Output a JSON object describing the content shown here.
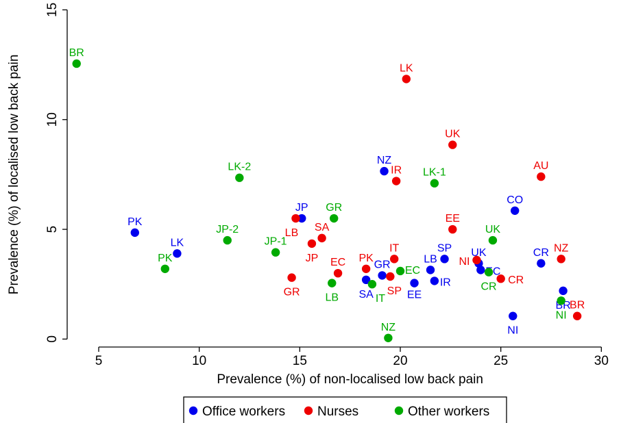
{
  "chart_data": {
    "type": "scatter",
    "xlabel": "Prevalence (%) of non-localised low back pain",
    "ylabel": "Prevalence (%) of localised low back pain",
    "xlim": [
      3.5,
      30.5
    ],
    "ylim": [
      -0.3,
      15.2
    ],
    "xticks": [
      5,
      10,
      15,
      20,
      25,
      30
    ],
    "yticks": [
      0,
      5,
      10,
      15
    ],
    "grid": false,
    "legend": "bottom",
    "series": [
      {
        "name": "Office workers",
        "color": "#0000ee",
        "points": [
          {
            "label": "PK",
            "x": 6.8,
            "y": 4.85
          },
          {
            "label": "LK",
            "x": 8.9,
            "y": 3.9
          },
          {
            "label": "JP",
            "x": 15.1,
            "y": 5.5
          },
          {
            "label": "NZ",
            "x": 19.2,
            "y": 7.65
          },
          {
            "label": "SA",
            "x": 18.3,
            "y": 2.7
          },
          {
            "label": "GR",
            "x": 19.1,
            "y": 2.9
          },
          {
            "label": "EE",
            "x": 20.7,
            "y": 2.55
          },
          {
            "label": "LB",
            "x": 21.5,
            "y": 3.15
          },
          {
            "label": "SP",
            "x": 22.2,
            "y": 3.65
          },
          {
            "label": "IR",
            "x": 21.7,
            "y": 2.65
          },
          {
            "label": "UK",
            "x": 23.9,
            "y": 3.45
          },
          {
            "label": "EC",
            "x": 24.0,
            "y": 3.15
          },
          {
            "label": "CO",
            "x": 25.7,
            "y": 5.85
          },
          {
            "label": "CR",
            "x": 27.0,
            "y": 3.45
          },
          {
            "label": "BR",
            "x": 28.1,
            "y": 2.2
          },
          {
            "label": "NI",
            "x": 25.6,
            "y": 1.05
          }
        ]
      },
      {
        "name": "Nurses",
        "color": "#ee0000",
        "points": [
          {
            "label": "LK",
            "x": 20.3,
            "y": 11.85
          },
          {
            "label": "UK",
            "x": 22.6,
            "y": 8.85
          },
          {
            "label": "IR",
            "x": 19.8,
            "y": 7.2
          },
          {
            "label": "AU",
            "x": 27.0,
            "y": 7.4
          },
          {
            "label": "EE",
            "x": 22.6,
            "y": 5.0
          },
          {
            "label": "LB",
            "x": 14.8,
            "y": 5.5
          },
          {
            "label": "SA",
            "x": 16.1,
            "y": 4.6
          },
          {
            "label": "JP",
            "x": 15.6,
            "y": 4.35
          },
          {
            "label": "GR",
            "x": 14.6,
            "y": 2.8
          },
          {
            "label": "EC",
            "x": 16.9,
            "y": 3.0
          },
          {
            "label": "PK",
            "x": 18.3,
            "y": 3.2
          },
          {
            "label": "SP",
            "x": 19.5,
            "y": 2.85
          },
          {
            "label": "IT",
            "x": 19.7,
            "y": 3.65
          },
          {
            "label": "NI",
            "x": 23.8,
            "y": 3.6
          },
          {
            "label": "CR",
            "x": 25.0,
            "y": 2.75
          },
          {
            "label": "NZ",
            "x": 28.0,
            "y": 3.65
          },
          {
            "label": "BR",
            "x": 28.8,
            "y": 1.05
          }
        ]
      },
      {
        "name": "Other workers",
        "color": "#00aa00",
        "points": [
          {
            "label": "BR",
            "x": 3.9,
            "y": 12.55
          },
          {
            "label": "LK-2",
            "x": 12.0,
            "y": 7.35
          },
          {
            "label": "JP-2",
            "x": 11.4,
            "y": 4.5
          },
          {
            "label": "JP-1",
            "x": 13.8,
            "y": 3.95
          },
          {
            "label": "PK",
            "x": 8.3,
            "y": 3.2
          },
          {
            "label": "GR",
            "x": 16.7,
            "y": 5.5
          },
          {
            "label": "LB",
            "x": 16.6,
            "y": 2.55
          },
          {
            "label": "IT",
            "x": 18.6,
            "y": 2.5
          },
          {
            "label": "EC",
            "x": 20.0,
            "y": 3.1
          },
          {
            "label": "LK-1",
            "x": 21.7,
            "y": 7.1
          },
          {
            "label": "UK",
            "x": 24.6,
            "y": 4.5
          },
          {
            "label": "CR",
            "x": 24.4,
            "y": 3.05
          },
          {
            "label": "NI",
            "x": 28.0,
            "y": 1.75
          },
          {
            "label": "NZ",
            "x": 19.4,
            "y": 0.05
          }
        ]
      }
    ]
  }
}
